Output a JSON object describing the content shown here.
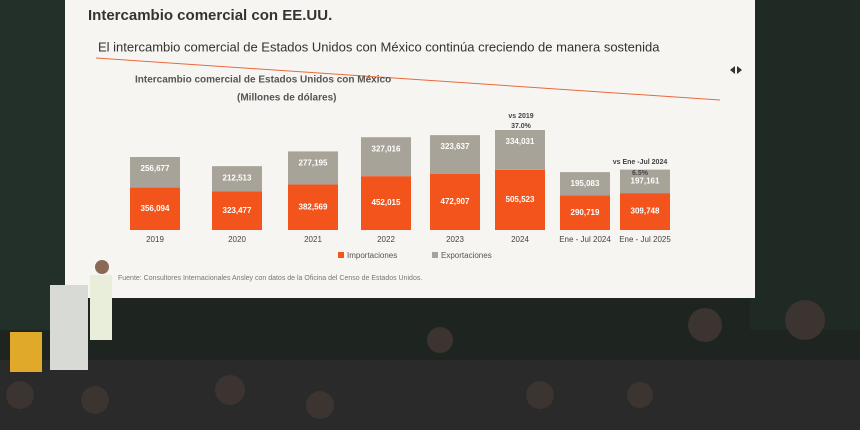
{
  "chart_data": {
    "type": "bar",
    "stacked": true,
    "title": "Intercambio comercial con EE.UU.",
    "subtitle": "El intercambio comercial de Estados Unidos con México continúa creciendo de manera sostenida",
    "chart_title": "Intercambio comercial de Estados Unidos con México",
    "units": "(Millones de dólares)",
    "categories": [
      "2019",
      "2020",
      "2021",
      "2022",
      "2023",
      "2024",
      "Ene - Jul  2024",
      "Ene - Jul 2025"
    ],
    "series": [
      {
        "name": "Importaciones",
        "color": "#f2541b",
        "values": [
          356094,
          323477,
          382569,
          452015,
          472907,
          505523,
          290719,
          309748
        ],
        "value_labels": [
          "356,094",
          "323,477",
          "382,569",
          "452,015",
          "472,907",
          "505,523",
          "290,719",
          "309,748"
        ]
      },
      {
        "name": "Exportaciones",
        "color": "#a8a398",
        "values": [
          256677,
          212513,
          277195,
          327016,
          323637,
          334031,
          195083,
          197161
        ],
        "value_labels": [
          "256,677",
          "212,513",
          "277,195",
          "327,016",
          "323,637",
          "334,031",
          "195,083",
          "197,161"
        ]
      }
    ],
    "annotations": [
      "vs 2019",
      "37.0%",
      "vs Ene -Jul 2024",
      "6.5%"
    ],
    "source": "Fuente: Consultores Internacionales Ansley con datos de la Oficina del Censo de Estados Unidos."
  }
}
